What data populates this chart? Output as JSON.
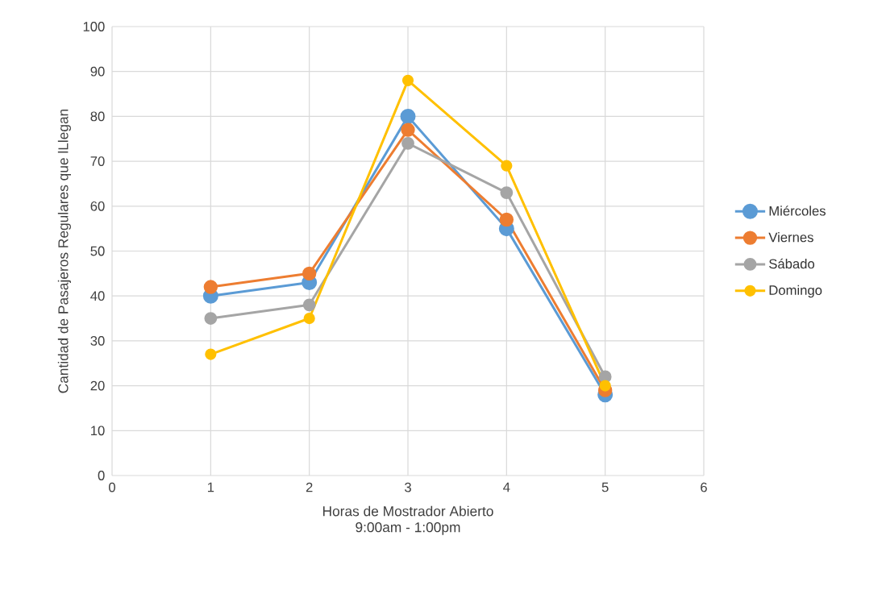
{
  "chart_data": {
    "type": "line",
    "xlabel": "Horas de Mostrador Abierto",
    "annotations": [
      "9:00am - 1:00pm"
    ],
    "ylabel": "Cantidad de Pasajeros Regulares que lLlegan",
    "x": [
      1,
      2,
      3,
      4,
      5
    ],
    "series": [
      {
        "name": "Miércoles",
        "color": "#5b9bd5",
        "values": [
          40,
          43,
          80,
          55,
          18
        ]
      },
      {
        "name": "Viernes",
        "color": "#ed7d31",
        "values": [
          42,
          45,
          77,
          57,
          19
        ]
      },
      {
        "name": "Sábado",
        "color": "#a5a5a5",
        "values": [
          35,
          38,
          74,
          63,
          22
        ]
      },
      {
        "name": "Domingo",
        "color": "#ffc000",
        "values": [
          27,
          35,
          88,
          69,
          20
        ]
      }
    ],
    "xlim": [
      0,
      6
    ],
    "xticks": [
      0,
      1,
      2,
      3,
      4,
      5,
      6
    ],
    "ylim": [
      0,
      100
    ],
    "yticks": [
      0,
      10,
      20,
      30,
      40,
      50,
      60,
      70,
      80,
      90,
      100
    ],
    "grid": true,
    "legend": "right",
    "marker": "circle",
    "line_style": "solid"
  }
}
